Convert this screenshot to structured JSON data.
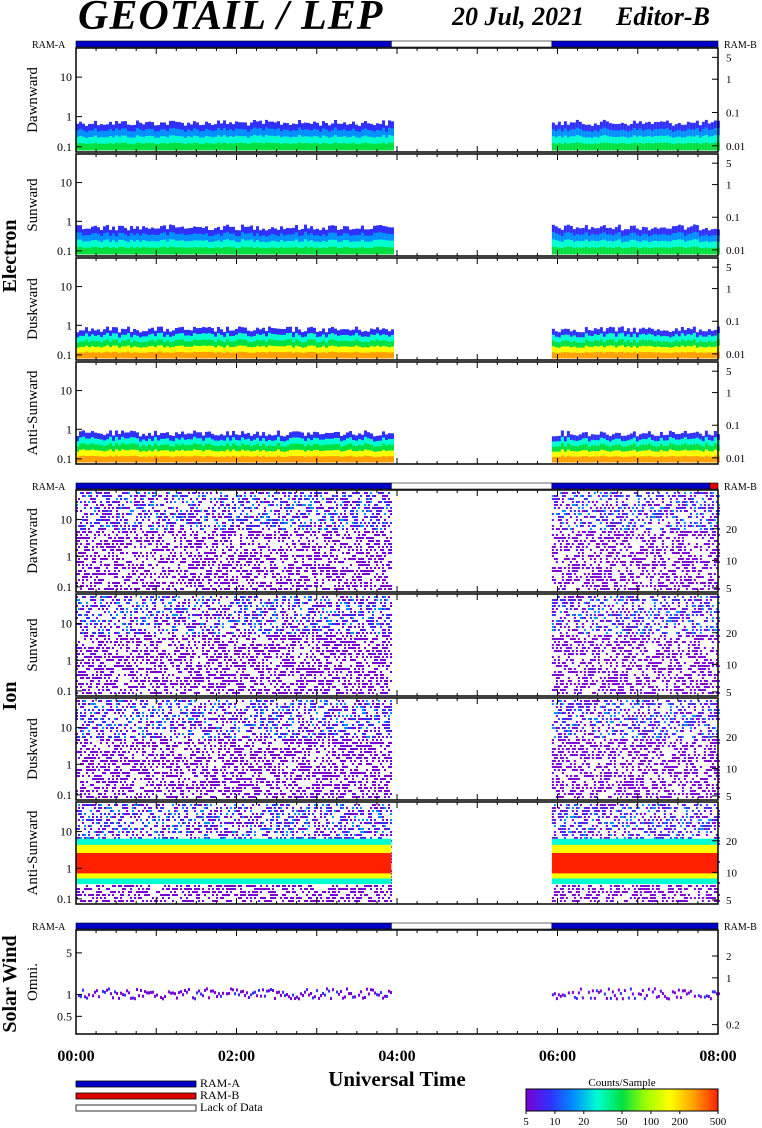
{
  "header": {
    "title": "GEOTAIL / LEP",
    "date": "20 Jul, 2021",
    "editor": "Editor-B"
  },
  "colors": {
    "ram_a": "#0000c8",
    "ram_b": "#e00000",
    "lack_of_data": "#ffffff",
    "colorbar_stops": [
      "#7a00d6",
      "#3030ff",
      "#0090ff",
      "#00ffd0",
      "#00e040",
      "#a0ff00",
      "#ffff00",
      "#ffa000",
      "#ff2000"
    ]
  },
  "sections": {
    "electron_label": "Electron",
    "ion_label": "Ion",
    "solar_wind_label": "Solar Wind"
  },
  "ram_labels": {
    "left": "RAM-A",
    "right": "RAM-B"
  },
  "chart_data": [
    {
      "type": "heatmap",
      "group": "Electron",
      "panel": "Dawnward",
      "ylabel": "Dawnward",
      "left_ticks": [
        "10",
        "1",
        "0.1"
      ],
      "right_ticks": [
        "5",
        "1",
        "0.1",
        "0.01"
      ],
      "data_gaps_hours": [
        [
          3.93,
          5.93
        ]
      ],
      "scale": "log"
    },
    {
      "type": "heatmap",
      "group": "Electron",
      "panel": "Sunward",
      "ylabel": "Sunward",
      "left_ticks": [
        "10",
        "1",
        "0.1"
      ],
      "right_ticks": [
        "5",
        "1",
        "0.1",
        "0.01"
      ],
      "data_gaps_hours": [
        [
          3.93,
          5.93
        ]
      ],
      "scale": "log"
    },
    {
      "type": "heatmap",
      "group": "Electron",
      "panel": "Duskward",
      "ylabel": "Duskward",
      "left_ticks": [
        "10",
        "1",
        "0.1"
      ],
      "right_ticks": [
        "5",
        "1",
        "0.1",
        "0.01"
      ],
      "data_gaps_hours": [
        [
          3.93,
          5.93
        ]
      ],
      "scale": "log"
    },
    {
      "type": "heatmap",
      "group": "Electron",
      "panel": "Anti-Sunward",
      "ylabel": "Anti-Sunward",
      "left_ticks": [
        "10",
        "1",
        "0.1"
      ],
      "right_ticks": [
        "5",
        "1",
        "0.1",
        "0.01"
      ],
      "data_gaps_hours": [
        [
          3.93,
          5.93
        ]
      ],
      "scale": "log"
    },
    {
      "type": "heatmap",
      "group": "Ion",
      "panel": "Dawnward",
      "ylabel": "Dawnward",
      "left_ticks": [
        "10",
        "1",
        "0.1"
      ],
      "right_ticks": [
        "20",
        "10",
        "5"
      ],
      "data_gaps_hours": [
        [
          3.93,
          5.93
        ]
      ],
      "scale": "log"
    },
    {
      "type": "heatmap",
      "group": "Ion",
      "panel": "Sunward",
      "ylabel": "Sunward",
      "left_ticks": [
        "10",
        "1",
        "0.1"
      ],
      "right_ticks": [
        "20",
        "10",
        "5"
      ],
      "data_gaps_hours": [
        [
          3.93,
          5.93
        ]
      ],
      "scale": "log"
    },
    {
      "type": "heatmap",
      "group": "Ion",
      "panel": "Duskward",
      "ylabel": "Duskward",
      "left_ticks": [
        "10",
        "1",
        "0.1"
      ],
      "right_ticks": [
        "20",
        "10",
        "5"
      ],
      "data_gaps_hours": [
        [
          3.93,
          5.93
        ]
      ],
      "scale": "log"
    },
    {
      "type": "heatmap",
      "group": "Ion",
      "panel": "Anti-Sunward",
      "ylabel": "Anti-Sunward",
      "left_ticks": [
        "10",
        "1",
        "0.1"
      ],
      "right_ticks": [
        "20",
        "10",
        "5"
      ],
      "data_gaps_hours": [
        [
          3.93,
          5.93
        ]
      ],
      "scale": "log"
    },
    {
      "type": "heatmap",
      "group": "Solar Wind",
      "panel": "Omni.",
      "ylabel": "Omni.",
      "left_ticks": [
        "5",
        "1",
        "0.5"
      ],
      "right_ticks": [
        "2",
        "1",
        "0.2"
      ],
      "data_gaps_hours": [
        [
          3.93,
          5.93
        ]
      ],
      "scale": "log"
    }
  ],
  "ram_bars": [
    {
      "segments": [
        {
          "from": 0,
          "to": 3.93,
          "kind": "ram_a"
        },
        {
          "from": 3.93,
          "to": 5.93,
          "kind": "lack_of_data"
        },
        {
          "from": 5.93,
          "to": 8,
          "kind": "ram_a"
        }
      ]
    },
    {
      "segments": [
        {
          "from": 0,
          "to": 3.93,
          "kind": "ram_a"
        },
        {
          "from": 3.93,
          "to": 5.93,
          "kind": "lack_of_data"
        },
        {
          "from": 5.93,
          "to": 7.9,
          "kind": "ram_a"
        },
        {
          "from": 7.9,
          "to": 8,
          "kind": "ram_b"
        }
      ]
    },
    {
      "segments": [
        {
          "from": 0,
          "to": 3.93,
          "kind": "ram_a"
        },
        {
          "from": 3.93,
          "to": 5.93,
          "kind": "lack_of_data"
        },
        {
          "from": 5.93,
          "to": 8,
          "kind": "ram_a"
        }
      ]
    }
  ],
  "x_axis": {
    "label": "Universal Time",
    "ticks": [
      "00:00",
      "02:00",
      "04:00",
      "06:00",
      "08:00"
    ],
    "tick_hours": [
      0,
      2,
      4,
      6,
      8
    ],
    "range_hours": [
      0,
      8
    ]
  },
  "legend": {
    "ram_a": "RAM-A",
    "ram_b": "RAM-B",
    "lack": "Lack of Data"
  },
  "colorbar": {
    "title": "Counts/Sample",
    "ticks": [
      "5",
      "10",
      "20",
      "50",
      "100",
      "200",
      "500"
    ],
    "tick_values": [
      5,
      10,
      20,
      50,
      100,
      200,
      500
    ],
    "range": [
      5,
      500
    ]
  }
}
